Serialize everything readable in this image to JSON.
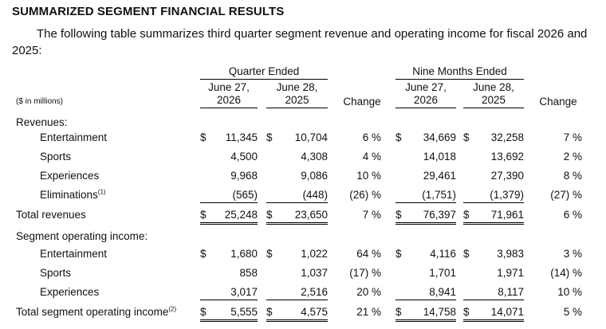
{
  "heading": "SUMMARIZED SEGMENT FINANCIAL RESULTS",
  "intro": "The following table summarizes third quarter segment revenue and operating income for fiscal 2026 and 2025:",
  "table": {
    "units_label": "($ in millions)",
    "groups": [
      "Quarter Ended",
      "Nine Months Ended"
    ],
    "columns": [
      {
        "line1": "June 27,",
        "line2": "2026"
      },
      {
        "line1": "June 28,",
        "line2": "2025"
      },
      {
        "label": "Change"
      },
      {
        "line1": "June 27,",
        "line2": "2026"
      },
      {
        "line1": "June 28,",
        "line2": "2025"
      },
      {
        "label": "Change"
      }
    ],
    "revenues_label": "Revenues:",
    "revenues": [
      {
        "label": "Entertainment",
        "q26": "11,345",
        "q25": "10,704",
        "qchg": "6 %",
        "n26": "34,669",
        "n25": "32,258",
        "nchg": "7 %"
      },
      {
        "label": "Sports",
        "q26": "4,500",
        "q25": "4,308",
        "qchg": "4 %",
        "n26": "14,018",
        "n25": "13,692",
        "nchg": "2 %"
      },
      {
        "label": "Experiences",
        "q26": "9,968",
        "q25": "9,086",
        "qchg": "10 %",
        "n26": "29,461",
        "n25": "27,390",
        "nchg": "8 %"
      },
      {
        "label": "Eliminations",
        "note": "(1)",
        "q26": "(565)",
        "q25": "(448)",
        "qchg": "(26) %",
        "n26": "(1,751)",
        "n25": "(1,379)",
        "nchg": "(27) %"
      }
    ],
    "total_revenues": {
      "label": "Total revenues",
      "q26": "25,248",
      "q25": "23,650",
      "qchg": "7 %",
      "n26": "76,397",
      "n25": "71,961",
      "nchg": "6 %"
    },
    "soi_label": "Segment operating income:",
    "soi": [
      {
        "label": "Entertainment",
        "q26": "1,680",
        "q25": "1,022",
        "qchg": "64 %",
        "n26": "4,116",
        "n25": "3,983",
        "nchg": "3 %"
      },
      {
        "label": "Sports",
        "q26": "858",
        "q25": "1,037",
        "qchg": "(17) %",
        "n26": "1,701",
        "n25": "1,971",
        "nchg": "(14) %"
      },
      {
        "label": "Experiences",
        "q26": "3,017",
        "q25": "2,516",
        "qchg": "20 %",
        "n26": "8,941",
        "n25": "8,117",
        "nchg": "10 %"
      }
    ],
    "total_soi": {
      "label": "Total segment operating income",
      "note": "(2)",
      "q26": "5,555",
      "q25": "4,575",
      "qchg": "21 %",
      "n26": "14,758",
      "n25": "14,071",
      "nchg": "5 %"
    },
    "currency": "$"
  }
}
